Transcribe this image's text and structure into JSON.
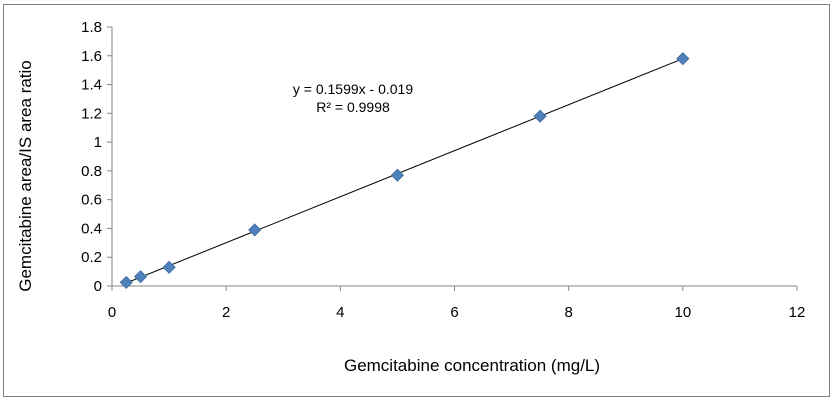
{
  "chart_data": {
    "type": "scatter",
    "title": "",
    "xlabel": "Gemcitabine concentration (mg/L)",
    "ylabel": "Gemcitabine area/IS area ratio",
    "xlim": [
      0,
      12
    ],
    "ylim": [
      0,
      1.8
    ],
    "x_ticks": [
      "0",
      "2",
      "4",
      "6",
      "8",
      "10",
      "12"
    ],
    "y_ticks": [
      "0",
      "0.2",
      "0.4",
      "0.6",
      "0.8",
      "1",
      "1.2",
      "1.4",
      "1.6",
      "1.8"
    ],
    "grid": false,
    "legend": "none",
    "marker": "diamond",
    "marker_color": "#4f81bd",
    "trendline_color": "#000000",
    "series": [
      {
        "x": [
          0.25,
          0.5,
          1,
          2.5,
          5,
          7.5,
          10
        ],
        "y": [
          0.025,
          0.065,
          0.13,
          0.39,
          0.77,
          1.18,
          1.58
        ]
      }
    ],
    "trendline": {
      "type": "linear",
      "slope": 0.1599,
      "intercept": -0.019,
      "x_range": [
        0.25,
        10
      ],
      "equation": "y = 0.1599x - 0.019",
      "r_squared": "R² = 0.9998"
    }
  }
}
